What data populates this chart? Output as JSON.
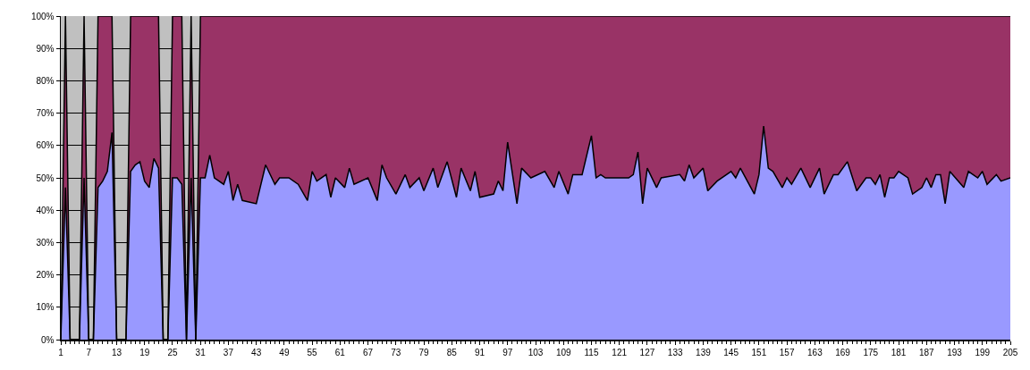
{
  "chart_data": {
    "type": "area",
    "stacked": true,
    "grid": "y",
    "x": [
      1,
      2,
      3,
      4,
      5,
      6,
      7,
      8,
      9,
      10,
      11,
      12,
      13,
      14,
      15,
      16,
      17,
      18,
      19,
      20,
      21,
      22,
      23,
      24,
      25,
      26,
      27,
      28,
      29,
      30,
      31,
      32,
      33,
      34,
      36,
      37,
      38,
      39,
      40,
      43,
      45,
      47,
      48,
      50,
      52,
      54,
      55,
      56,
      58,
      59,
      60,
      62,
      63,
      64,
      67,
      69,
      70,
      71,
      73,
      75,
      76,
      78,
      79,
      81,
      82,
      84,
      86,
      87,
      89,
      90,
      91,
      94,
      95,
      96,
      97,
      99,
      100,
      102,
      105,
      107,
      108,
      110,
      111,
      113,
      115,
      116,
      117,
      118,
      123,
      124,
      125,
      126,
      127,
      129,
      130,
      134,
      135,
      136,
      137,
      139,
      140,
      142,
      145,
      146,
      147,
      150,
      151,
      152,
      153,
      154,
      156,
      157,
      158,
      160,
      162,
      164,
      165,
      167,
      168,
      170,
      172,
      174,
      175,
      176,
      177,
      178,
      179,
      180,
      181,
      183,
      184,
      186,
      187,
      188,
      189,
      190,
      191,
      192,
      195,
      196,
      198,
      199,
      200,
      202,
      203,
      205
    ],
    "series": [
      {
        "color": "#9999ff",
        "values": [
          0,
          47,
          0,
          0,
          0,
          50,
          0,
          0,
          47,
          49,
          52,
          64,
          0,
          0,
          0,
          52,
          54,
          55,
          49,
          47,
          56,
          53,
          0,
          0,
          50,
          50,
          48,
          0,
          50,
          0,
          50,
          50,
          57,
          50,
          48,
          52,
          43,
          48,
          43,
          42,
          54,
          48,
          50,
          50,
          48,
          43,
          52,
          49,
          51,
          44,
          50,
          47,
          53,
          48,
          50,
          43,
          54,
          50,
          45,
          51,
          47,
          50,
          46,
          53,
          47,
          55,
          44,
          53,
          46,
          52,
          44,
          45,
          49,
          46,
          61,
          42,
          53,
          50,
          52,
          47,
          52,
          45,
          51,
          51,
          63,
          50,
          51,
          50,
          50,
          51,
          58,
          42,
          53,
          47,
          50,
          51,
          49,
          54,
          50,
          53,
          46,
          49,
          52,
          50,
          53,
          45,
          51,
          66,
          53,
          52,
          47,
          50,
          48,
          53,
          47,
          53,
          45,
          51,
          51,
          55,
          46,
          50,
          50,
          48,
          51,
          44,
          50,
          50,
          52,
          50,
          45,
          47,
          50,
          47,
          51,
          51,
          42,
          52,
          47,
          52,
          50,
          52,
          48,
          51,
          49,
          50
        ]
      },
      {
        "color": "#993366",
        "values": [
          0,
          53,
          0,
          0,
          0,
          50,
          0,
          0,
          53,
          51,
          48,
          36,
          0,
          0,
          0,
          48,
          46,
          45,
          51,
          53,
          44,
          47,
          0,
          0,
          50,
          50,
          52,
          0,
          50,
          0,
          50,
          50,
          43,
          50,
          52,
          48,
          57,
          52,
          57,
          58,
          46,
          52,
          50,
          50,
          52,
          57,
          48,
          51,
          49,
          56,
          50,
          53,
          47,
          52,
          50,
          57,
          46,
          50,
          55,
          49,
          53,
          50,
          54,
          47,
          53,
          45,
          56,
          47,
          54,
          48,
          56,
          55,
          51,
          54,
          39,
          58,
          47,
          50,
          48,
          53,
          48,
          55,
          49,
          49,
          37,
          50,
          49,
          50,
          50,
          49,
          42,
          58,
          47,
          53,
          50,
          49,
          51,
          46,
          50,
          47,
          54,
          51,
          48,
          50,
          47,
          55,
          49,
          34,
          47,
          48,
          53,
          50,
          52,
          47,
          53,
          47,
          55,
          49,
          49,
          45,
          54,
          50,
          50,
          52,
          49,
          56,
          50,
          50,
          48,
          50,
          55,
          53,
          50,
          53,
          49,
          49,
          58,
          48,
          53,
          48,
          50,
          48,
          52,
          49,
          51,
          50
        ]
      }
    ],
    "xlim": [
      1,
      205
    ],
    "xticks": [
      1,
      7,
      13,
      19,
      25,
      31,
      37,
      43,
      49,
      55,
      61,
      67,
      73,
      79,
      85,
      91,
      97,
      103,
      109,
      115,
      121,
      127,
      133,
      139,
      145,
      151,
      157,
      163,
      169,
      175,
      181,
      187,
      193,
      199,
      205
    ],
    "ylim": [
      0,
      100
    ],
    "yticks": [
      {
        "value": 0,
        "label": "0%"
      },
      {
        "value": 10,
        "label": "10%"
      },
      {
        "value": 20,
        "label": "20%"
      },
      {
        "value": 30,
        "label": "30%"
      },
      {
        "value": 40,
        "label": "40%"
      },
      {
        "value": 50,
        "label": "50%"
      },
      {
        "value": 60,
        "label": "60%"
      },
      {
        "value": 70,
        "label": "70%"
      },
      {
        "value": 80,
        "label": "80%"
      },
      {
        "value": 90,
        "label": "90%"
      },
      {
        "value": 100,
        "label": "100%"
      }
    ]
  }
}
